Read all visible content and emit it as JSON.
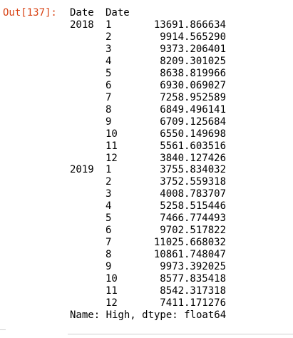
{
  "prompt": "Out[137]:",
  "header": [
    "Date",
    "Date"
  ],
  "groups": [
    {
      "year": "2018",
      "rows": [
        [
          "1",
          "13691.866634"
        ],
        [
          "2",
          "9914.565290"
        ],
        [
          "3",
          "9373.206401"
        ],
        [
          "4",
          "8209.301025"
        ],
        [
          "5",
          "8638.819966"
        ],
        [
          "6",
          "6930.069027"
        ],
        [
          "7",
          "7258.952589"
        ],
        [
          "8",
          "6849.496141"
        ],
        [
          "9",
          "6709.125684"
        ],
        [
          "10",
          "6550.149698"
        ],
        [
          "11",
          "5561.603516"
        ],
        [
          "12",
          "3840.127426"
        ]
      ]
    },
    {
      "year": "2019",
      "rows": [
        [
          "1",
          "3755.834032"
        ],
        [
          "2",
          "3752.559318"
        ],
        [
          "3",
          "4008.783707"
        ],
        [
          "4",
          "5258.515446"
        ],
        [
          "5",
          "7466.774493"
        ],
        [
          "6",
          "9702.517822"
        ],
        [
          "7",
          "11025.668032"
        ],
        [
          "8",
          "10861.748047"
        ],
        [
          "9",
          "9973.392025"
        ],
        [
          "10",
          "8577.835418"
        ],
        [
          "11",
          "8542.317318"
        ],
        [
          "12",
          "7411.171276"
        ]
      ]
    }
  ],
  "footer": "Name: High, dtype: float64"
}
